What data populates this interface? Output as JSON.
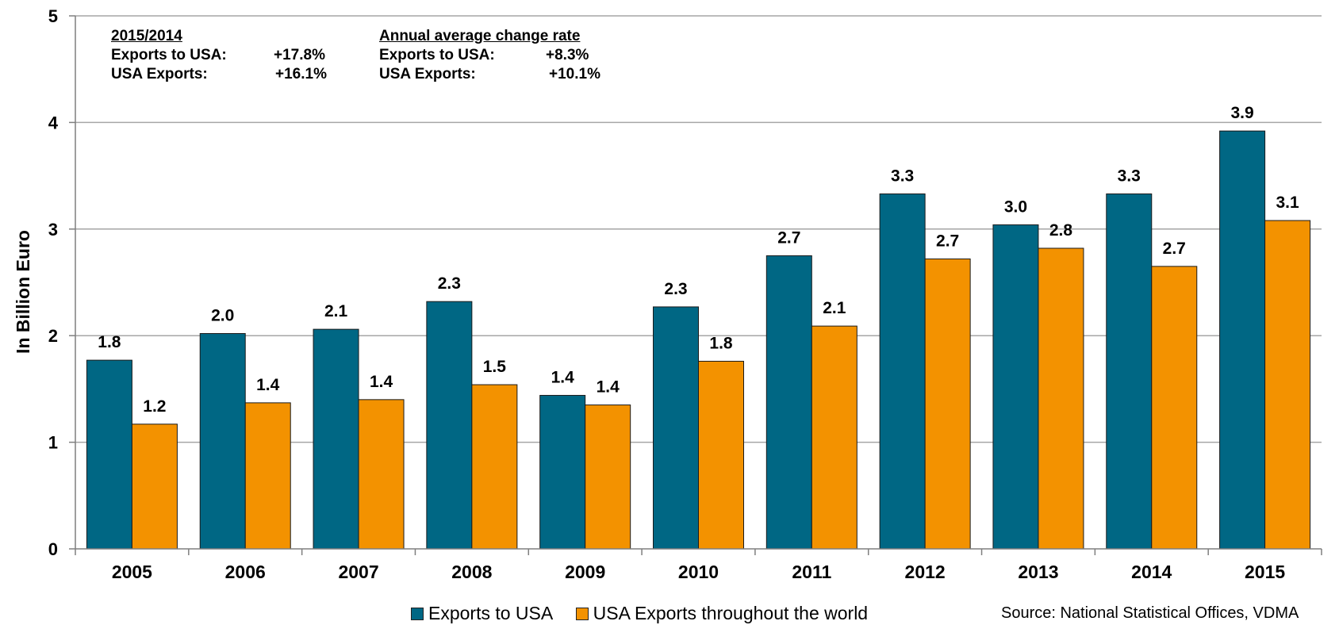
{
  "chart_data": {
    "type": "bar",
    "categories": [
      "2005",
      "2006",
      "2007",
      "2008",
      "2009",
      "2010",
      "2011",
      "2012",
      "2013",
      "2014",
      "2015"
    ],
    "series": [
      {
        "name": "Exports to USA",
        "color": "#006784",
        "values": [
          1.77,
          2.02,
          2.06,
          2.32,
          1.44,
          2.27,
          2.75,
          3.33,
          3.04,
          3.33,
          3.92
        ],
        "labels": [
          "1.8",
          "2.0",
          "2.1",
          "2.3",
          "1.4",
          "2.3",
          "2.7",
          "3.3",
          "3.0",
          "3.3",
          "3.9"
        ]
      },
      {
        "name": "USA Exports throughout the world",
        "color": "#F39200",
        "values": [
          1.17,
          1.37,
          1.4,
          1.54,
          1.35,
          1.76,
          2.09,
          2.72,
          2.82,
          2.65,
          3.08
        ],
        "labels": [
          "1.2",
          "1.4",
          "1.4",
          "1.5",
          "1.4",
          "1.8",
          "2.1",
          "2.7",
          "2.8",
          "2.7",
          "3.1"
        ]
      }
    ],
    "ylabel": "In Billion Euro",
    "ylim": [
      0,
      5
    ],
    "yticks": [
      "0",
      "1",
      "2",
      "3",
      "4",
      "5"
    ],
    "grid": true,
    "legend_position": "bottom"
  },
  "notes": {
    "left": {
      "heading": "2015/2014",
      "rows": [
        {
          "label": "Exports to USA:",
          "value": "+17.8%"
        },
        {
          "label": "USA Exports:",
          "value": "+16.1%"
        }
      ]
    },
    "right": {
      "heading": "Annual average change rate",
      "rows": [
        {
          "label": "Exports to USA:",
          "value": "+8.3%"
        },
        {
          "label": "USA Exports:",
          "value": "+10.1%"
        }
      ]
    }
  },
  "legend": {
    "items": [
      {
        "label": "Exports to USA",
        "color": "#006784"
      },
      {
        "label": "USA Exports throughout the world",
        "color": "#F39200"
      }
    ]
  },
  "source": "Source: National Statistical Offices, VDMA"
}
